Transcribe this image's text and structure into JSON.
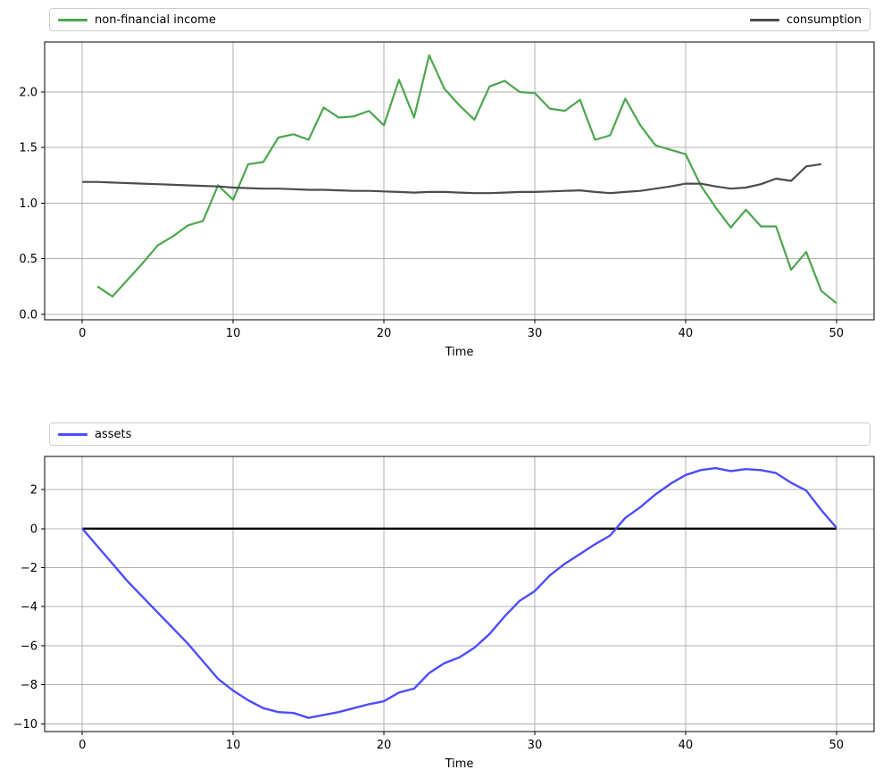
{
  "figure": {
    "background": "#ffffff",
    "grid_color": "#b0b0b0",
    "spine_color": "#000000",
    "xlabel": "Time"
  },
  "chart_data": [
    {
      "type": "line",
      "title": "",
      "xlabel": "Time",
      "ylabel": "",
      "grid": true,
      "legend_position": "top-expand",
      "xlim": [
        -2.5,
        52.5
      ],
      "ylim": [
        -0.05,
        2.45
      ],
      "xticks": {
        "values": [
          0,
          10,
          20,
          30,
          40,
          50
        ],
        "labels": [
          "0",
          "10",
          "20",
          "30",
          "40",
          "50"
        ]
      },
      "yticks": {
        "values": [
          0.0,
          0.5,
          1.0,
          1.5,
          2.0
        ],
        "labels": [
          "0.0",
          "0.5",
          "1.0",
          "1.5",
          "2.0"
        ]
      },
      "series": [
        {
          "name": "non-financial income",
          "color": "#4CA64C",
          "line_width": 2.2,
          "x_start": 1,
          "values": [
            0.25,
            0.16,
            0.31,
            0.46,
            0.62,
            0.7,
            0.8,
            0.84,
            1.16,
            1.03,
            1.35,
            1.37,
            1.59,
            1.62,
            1.57,
            1.86,
            1.77,
            1.78,
            1.83,
            1.7,
            2.11,
            1.77,
            2.33,
            2.03,
            1.88,
            1.75,
            2.05,
            2.1,
            2.0,
            1.99,
            1.85,
            1.83,
            1.93,
            1.57,
            1.61,
            1.94,
            1.7,
            1.52,
            1.48,
            1.44,
            1.16,
            0.96,
            0.78,
            0.94,
            0.79,
            0.79,
            0.4,
            0.56,
            0.21,
            0.1
          ]
        },
        {
          "name": "consumption",
          "color": "#4C4C4C",
          "line_width": 2.2,
          "x_start": 0,
          "values": [
            1.19,
            1.19,
            1.185,
            1.18,
            1.175,
            1.17,
            1.165,
            1.16,
            1.155,
            1.15,
            1.14,
            1.135,
            1.13,
            1.13,
            1.125,
            1.12,
            1.12,
            1.115,
            1.11,
            1.11,
            1.105,
            1.1,
            1.095,
            1.1,
            1.1,
            1.095,
            1.09,
            1.09,
            1.095,
            1.1,
            1.1,
            1.105,
            1.11,
            1.115,
            1.1,
            1.09,
            1.1,
            1.11,
            1.13,
            1.15,
            1.175,
            1.175,
            1.15,
            1.13,
            1.14,
            1.17,
            1.22,
            1.2,
            1.33,
            1.35
          ]
        }
      ]
    },
    {
      "type": "line",
      "title": "",
      "xlabel": "Time",
      "ylabel": "",
      "grid": true,
      "legend_position": "top-expand",
      "xlim": [
        -2.5,
        52.5
      ],
      "ylim": [
        -10.4,
        3.7
      ],
      "xticks": {
        "values": [
          0,
          10,
          20,
          30,
          40,
          50
        ],
        "labels": [
          "0",
          "10",
          "20",
          "30",
          "40",
          "50"
        ]
      },
      "yticks": {
        "values": [
          2,
          0,
          -2,
          -4,
          -6,
          -8,
          -10
        ],
        "labels": [
          "2",
          "0",
          "−2",
          "−4",
          "−6",
          "−8",
          "−10"
        ]
      },
      "hline": {
        "y": 0,
        "x_from": 0,
        "x_to": 50,
        "color": "#000000",
        "line_width": 2.4
      },
      "series": [
        {
          "name": "assets",
          "color": "#4C4CFF",
          "line_width": 2.4,
          "x_start": 0,
          "values": [
            0.0,
            -0.9,
            -1.8,
            -2.7,
            -3.5,
            -4.3,
            -5.1,
            -5.9,
            -6.8,
            -7.7,
            -8.3,
            -8.8,
            -9.2,
            -9.4,
            -9.45,
            -9.7,
            -9.55,
            -9.4,
            -9.2,
            -9.0,
            -8.85,
            -8.4,
            -8.2,
            -7.4,
            -6.9,
            -6.6,
            -6.1,
            -5.4,
            -4.5,
            -3.7,
            -3.2,
            -2.4,
            -1.8,
            -1.3,
            -0.8,
            -0.35,
            0.55,
            1.1,
            1.75,
            2.3,
            2.75,
            3.0,
            3.1,
            2.95,
            3.05,
            3.0,
            2.85,
            2.35,
            1.95,
            0.95,
            0.05
          ]
        }
      ]
    }
  ]
}
